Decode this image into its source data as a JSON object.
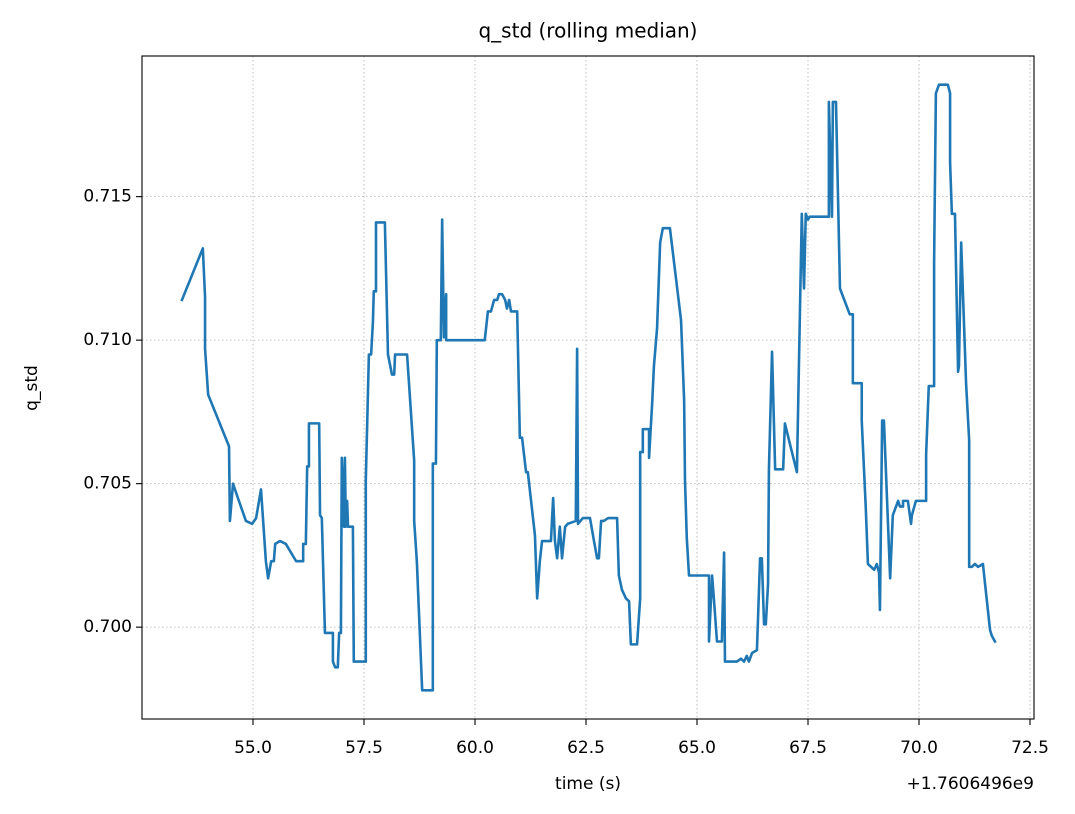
{
  "chart_data": {
    "type": "line",
    "title": "q_std (rolling median)",
    "xlabel": "time (s)",
    "ylabel": "q_std",
    "x_offset_label": "+1.7606496e9",
    "color": "#1f77b4",
    "grid": true,
    "xlim": [
      52.5,
      72.59
    ],
    "ylim": [
      0.6968,
      0.7199
    ],
    "xticks": [
      {
        "value": 55,
        "label": "55.0"
      },
      {
        "value": 57.5,
        "label": "57.5"
      },
      {
        "value": 60,
        "label": "60.0"
      },
      {
        "value": 62.5,
        "label": "62.5"
      },
      {
        "value": 65,
        "label": "65.0"
      },
      {
        "value": 67.5,
        "label": "67.5"
      },
      {
        "value": 70,
        "label": "70.0"
      },
      {
        "value": 72.5,
        "label": "72.5"
      }
    ],
    "yticks": [
      {
        "value": 0.7,
        "label": "0.700"
      },
      0.705,
      {
        "value": 0.71,
        "label": "0.710"
      },
      0.715
    ],
    "x": [
      53.4,
      53.87,
      53.92,
      53.92,
      53.99,
      54.46,
      54.48,
      54.55,
      54.66,
      54.84,
      54.98,
      55.07,
      55.18,
      55.29,
      55.34,
      55.41,
      55.47,
      55.5,
      55.61,
      55.74,
      55.97,
      56.13,
      56.13,
      56.19,
      56.22,
      56.26,
      56.26,
      56.35,
      56.49,
      56.51,
      56.55,
      56.62,
      56.8,
      56.8,
      56.85,
      56.91,
      56.94,
      56.98,
      57.0,
      57.05,
      57.07,
      57.09,
      57.12,
      57.14,
      57.25,
      57.27,
      57.54,
      57.54,
      57.61,
      57.66,
      57.7,
      57.72,
      57.77,
      57.77,
      57.97,
      58.04,
      58.13,
      58.18,
      58.2,
      58.47,
      58.63,
      58.63,
      58.69,
      58.81,
      59.05,
      59.05,
      59.12,
      59.14,
      59.23,
      59.26,
      59.3,
      59.35,
      59.35,
      60.22,
      60.29,
      60.36,
      60.43,
      60.5,
      60.54,
      60.61,
      60.68,
      60.72,
      60.77,
      60.81,
      60.95,
      61.01,
      61.06,
      61.15,
      61.19,
      61.35,
      61.4,
      61.46,
      61.51,
      61.71,
      61.76,
      61.8,
      61.85,
      61.91,
      61.96,
      62.03,
      62.09,
      62.27,
      62.3,
      62.32,
      62.43,
      62.59,
      62.68,
      62.75,
      62.79,
      62.84,
      62.9,
      63.0,
      63.2,
      63.24,
      63.31,
      63.4,
      63.47,
      63.51,
      63.65,
      63.72,
      63.72,
      63.78,
      63.78,
      63.92,
      63.92,
      63.99,
      64.03,
      64.1,
      64.17,
      64.23,
      64.39,
      64.64,
      64.71,
      64.73,
      64.77,
      64.82,
      65.27,
      65.27,
      65.34,
      65.38,
      65.45,
      65.56,
      65.61,
      65.63,
      65.81,
      65.9,
      65.99,
      66.06,
      66.12,
      66.17,
      66.24,
      66.35,
      66.42,
      66.46,
      66.51,
      66.55,
      66.6,
      66.62,
      66.69,
      66.76,
      66.94,
      66.98,
      67.09,
      67.25,
      67.36,
      67.41,
      67.45,
      67.5,
      67.54,
      67.97,
      67.97,
      68.04,
      68.06,
      68.13,
      68.22,
      68.44,
      68.51,
      68.51,
      68.71,
      68.71,
      68.8,
      68.85,
      68.99,
      69.05,
      69.1,
      69.12,
      69.17,
      69.21,
      69.35,
      69.41,
      69.53,
      69.57,
      69.64,
      69.64,
      69.75,
      69.82,
      69.84,
      69.93,
      70.16,
      70.16,
      70.22,
      70.34,
      70.34,
      70.38,
      70.45,
      70.65,
      70.7,
      70.7,
      70.74,
      70.81,
      70.88,
      70.9,
      70.95,
      71.06,
      71.13,
      71.13,
      71.19,
      71.26,
      71.33,
      71.44,
      71.53,
      71.6,
      71.64,
      71.71
    ],
    "values": [
      0.7114,
      0.7132,
      0.7115,
      0.7097,
      0.7081,
      0.7063,
      0.7037,
      0.705,
      0.7045,
      0.7037,
      0.7036,
      0.7038,
      0.7048,
      0.7023,
      0.7017,
      0.7023,
      0.7023,
      0.7029,
      0.703,
      0.7029,
      0.7023,
      0.7023,
      0.7029,
      0.7029,
      0.7056,
      0.7056,
      0.7071,
      0.7071,
      0.7071,
      0.7039,
      0.7038,
      0.6998,
      0.6998,
      0.6988,
      0.6986,
      0.6986,
      0.6998,
      0.6998,
      0.7059,
      0.7035,
      0.7059,
      0.7035,
      0.7044,
      0.7035,
      0.7035,
      0.6988,
      0.6988,
      0.7051,
      0.7095,
      0.7095,
      0.7106,
      0.7117,
      0.7117,
      0.7141,
      0.7141,
      0.7095,
      0.7088,
      0.7088,
      0.7095,
      0.7095,
      0.7058,
      0.7037,
      0.7023,
      0.6978,
      0.6978,
      0.7057,
      0.7057,
      0.71,
      0.71,
      0.7142,
      0.7101,
      0.7116,
      0.71,
      0.71,
      0.711,
      0.711,
      0.7114,
      0.7114,
      0.7116,
      0.7116,
      0.7114,
      0.7111,
      0.7114,
      0.711,
      0.711,
      0.7066,
      0.7066,
      0.7054,
      0.7054,
      0.7032,
      0.701,
      0.7023,
      0.703,
      0.703,
      0.7045,
      0.703,
      0.7024,
      0.7035,
      0.7024,
      0.7035,
      0.7036,
      0.7037,
      0.7097,
      0.7036,
      0.7038,
      0.7038,
      0.703,
      0.7024,
      0.7024,
      0.7037,
      0.7037,
      0.7038,
      0.7038,
      0.7018,
      0.7013,
      0.701,
      0.7009,
      0.6994,
      0.6994,
      0.701,
      0.7061,
      0.7061,
      0.7069,
      0.7069,
      0.7059,
      0.7078,
      0.7091,
      0.7104,
      0.7134,
      0.7139,
      0.7139,
      0.7107,
      0.7079,
      0.7051,
      0.7031,
      0.7018,
      0.7018,
      0.6995,
      0.7018,
      0.701,
      0.6995,
      0.6995,
      0.7026,
      0.6988,
      0.6988,
      0.6988,
      0.6989,
      0.6988,
      0.699,
      0.6988,
      0.6991,
      0.6992,
      0.7024,
      0.7024,
      0.7001,
      0.7001,
      0.7015,
      0.7055,
      0.7096,
      0.7055,
      0.7055,
      0.7071,
      0.7064,
      0.7054,
      0.7144,
      0.7118,
      0.7144,
      0.7142,
      0.7143,
      0.7143,
      0.7183,
      0.7143,
      0.7183,
      0.7183,
      0.7118,
      0.7109,
      0.7109,
      0.7085,
      0.7085,
      0.7072,
      0.7042,
      0.7022,
      0.702,
      0.7022,
      0.7019,
      0.7006,
      0.7072,
      0.7072,
      0.7017,
      0.7039,
      0.7044,
      0.7042,
      0.7042,
      0.7044,
      0.7044,
      0.7036,
      0.7039,
      0.7044,
      0.7044,
      0.706,
      0.7084,
      0.7084,
      0.7127,
      0.7186,
      0.7189,
      0.7189,
      0.7186,
      0.7162,
      0.7144,
      0.7144,
      0.7089,
      0.7091,
      0.7134,
      0.7085,
      0.7065,
      0.7021,
      0.7021,
      0.7022,
      0.7021,
      0.7022,
      0.7009,
      0.6999,
      0.6997,
      0.6995
    ]
  }
}
